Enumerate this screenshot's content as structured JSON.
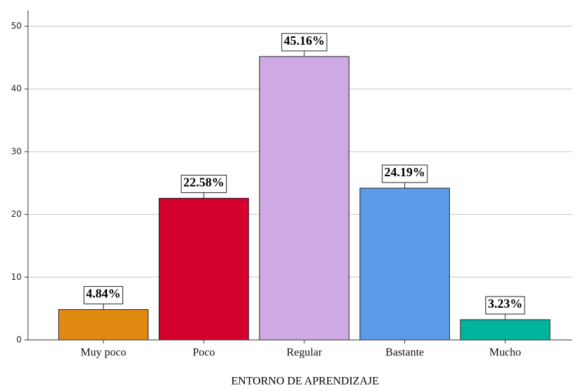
{
  "chart_data": {
    "type": "bar",
    "x_label": "ENTORNO DE APRENDIZAJE",
    "categories": [
      "Muy poco",
      "Poco",
      "Regular",
      "Bastante",
      "Mucho"
    ],
    "values": [
      4.84,
      22.58,
      45.16,
      24.19,
      3.23
    ],
    "value_labels": [
      "4.84%",
      "22.58%",
      "45.16%",
      "24.19%",
      "3.23%"
    ],
    "colors": [
      "#e08a12",
      "#d4002d",
      "#cfa9e4",
      "#5b9ae6",
      "#00b39c"
    ],
    "ylim": [
      0,
      52.5
    ],
    "yticks": [
      0,
      10,
      20,
      30,
      40,
      50
    ],
    "grid": true
  }
}
